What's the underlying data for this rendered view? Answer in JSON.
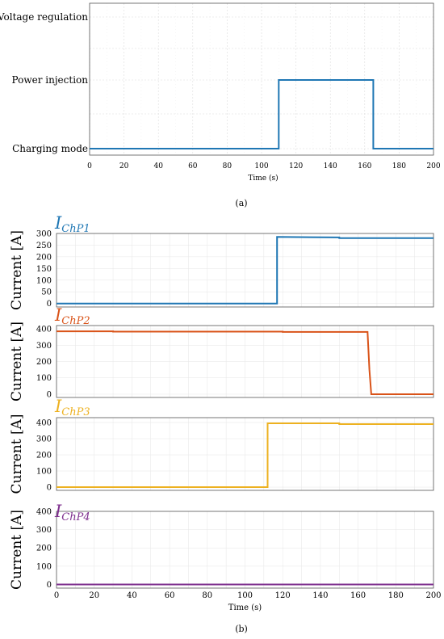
{
  "chart_data": [
    {
      "type": "line",
      "step": true,
      "xlabel": "Time (s)",
      "xlim": [
        0,
        200
      ],
      "x_ticks": [
        0,
        20,
        40,
        60,
        80,
        100,
        120,
        140,
        160,
        180,
        200
      ],
      "y_categories": [
        "Charging mode",
        "Power injection",
        "Voltage regulation"
      ],
      "grid": true,
      "caption": "(a)",
      "series": [
        {
          "color": "#1f77b4",
          "points": [
            [
              0,
              0
            ],
            [
              110,
              0
            ],
            [
              110,
              1
            ],
            [
              165,
              1
            ],
            [
              165,
              0
            ],
            [
              200,
              0
            ]
          ]
        }
      ]
    },
    {
      "type": "line",
      "xlabel": "Time (s)",
      "xlim": [
        0,
        200
      ],
      "x_ticks": [
        0,
        20,
        40,
        60,
        80,
        100,
        120,
        140,
        160,
        180,
        200
      ],
      "ylabel": "Current [A]",
      "grid": true,
      "caption": "(b)",
      "subplots": [
        {
          "name_main": "I",
          "name_sub": "ChP1",
          "color": "#1f77b4",
          "ylim": [
            -15,
            300
          ],
          "y_ticks": [
            0,
            50,
            100,
            150,
            200,
            250,
            300
          ],
          "points": [
            [
              0,
              0
            ],
            [
              117,
              0
            ],
            [
              117,
              285
            ],
            [
              150,
              283
            ],
            [
              150,
              280
            ],
            [
              200,
              280
            ]
          ]
        },
        {
          "name_main": "I",
          "name_sub": "ChP2",
          "color": "#d95319",
          "ylim": [
            -20,
            420
          ],
          "y_ticks": [
            0,
            100,
            200,
            300,
            400
          ],
          "points": [
            [
              0,
              385
            ],
            [
              30,
              385
            ],
            [
              30,
              383
            ],
            [
              120,
              383
            ],
            [
              120,
              381
            ],
            [
              165,
              381
            ],
            [
              166,
              150
            ],
            [
              167,
              0
            ],
            [
              200,
              0
            ]
          ]
        },
        {
          "name_main": "I",
          "name_sub": "ChP3",
          "color": "#edb120",
          "ylim": [
            -20,
            430
          ],
          "y_ticks": [
            0,
            100,
            200,
            300,
            400
          ],
          "points": [
            [
              0,
              0
            ],
            [
              112,
              0
            ],
            [
              112,
              395
            ],
            [
              150,
              395
            ],
            [
              150,
              390
            ],
            [
              200,
              390
            ]
          ]
        },
        {
          "name_main": "I",
          "name_sub": "ChP4",
          "color": "#7e2f8e",
          "ylim": [
            -20,
            400
          ],
          "y_ticks": [
            0,
            100,
            200,
            300,
            400
          ],
          "points": [
            [
              0,
              0
            ],
            [
              200,
              0
            ]
          ]
        }
      ]
    }
  ]
}
